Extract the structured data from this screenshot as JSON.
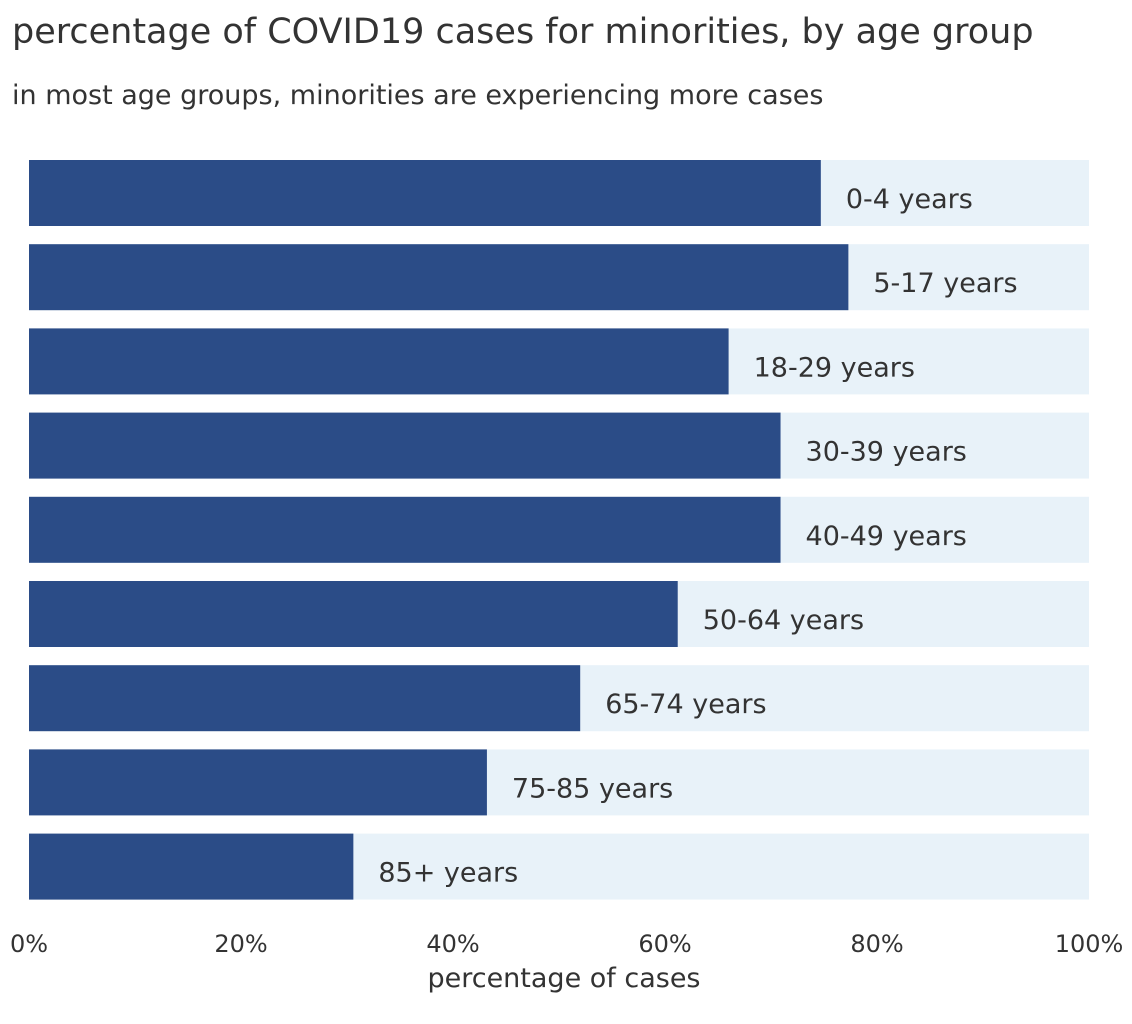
{
  "chart_data": {
    "type": "bar",
    "orientation": "horizontal",
    "stacked": true,
    "title": "percentage of COVID19 cases for minorities, by age group",
    "subtitle": "in most age groups, minorities are experiencing more cases",
    "xlabel": "percentage of cases",
    "xlim": [
      0,
      100
    ],
    "x_ticks": [
      0,
      20,
      40,
      60,
      80,
      100
    ],
    "x_tick_labels": [
      "0%",
      "20%",
      "40%",
      "60%",
      "80%",
      "100%"
    ],
    "grid": false,
    "categories": [
      "0-4 years",
      "5-17 years",
      "18-29 years",
      "30-39 years",
      "40-49 years",
      "50-64 years",
      "65-74 years",
      "75-85 years",
      "85+ years"
    ],
    "values": [
      74.7,
      77.3,
      66.0,
      70.9,
      70.9,
      61.2,
      52.0,
      43.2,
      30.6
    ],
    "background_value": 100,
    "colors": {
      "bar": "#2b4c87",
      "background_bar": "#e8f2f9",
      "text": "#333333"
    }
  }
}
